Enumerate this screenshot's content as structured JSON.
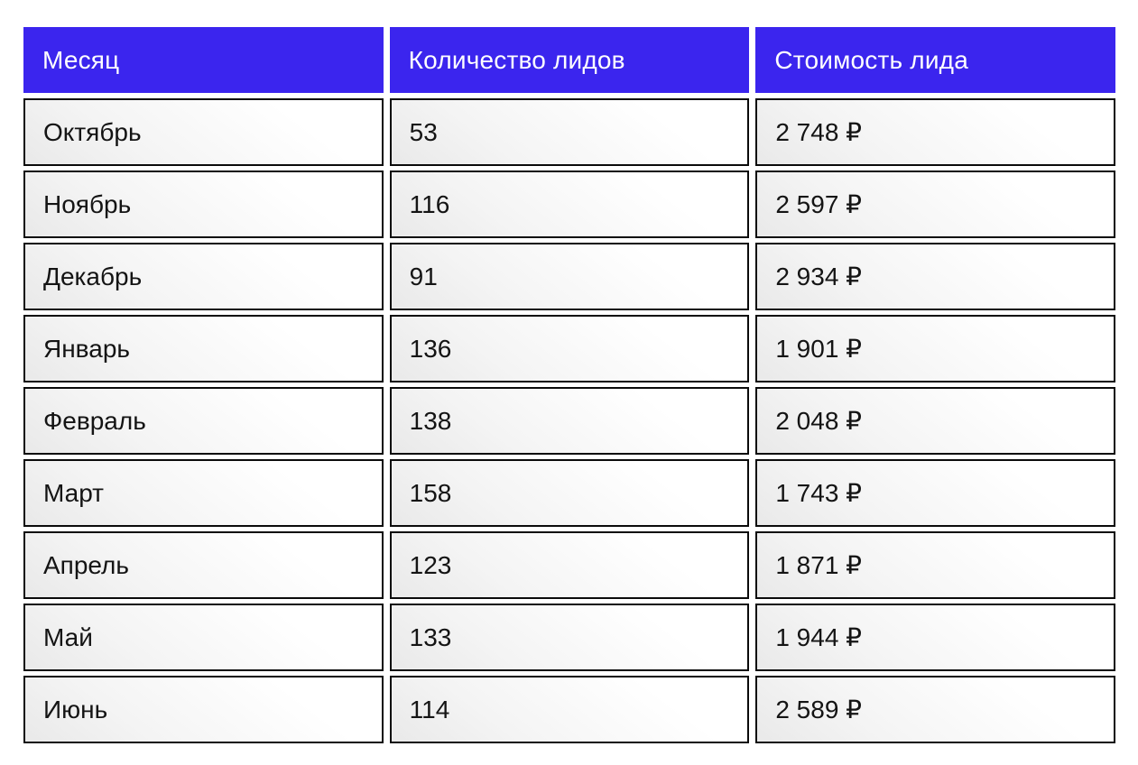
{
  "colors": {
    "header_bg": "#3b25ee",
    "header_text": "#ffffff",
    "cell_border": "#0b0b0b",
    "cell_text": "#141414",
    "page_bg": "#ffffff"
  },
  "table": {
    "columns": [
      {
        "label": "Месяц"
      },
      {
        "label": "Количество лидов"
      },
      {
        "label": "Стоимость лида"
      }
    ],
    "rows": [
      {
        "month": "Октябрь",
        "leads": "53",
        "cost": "2 748 ₽"
      },
      {
        "month": "Ноябрь",
        "leads": "116",
        "cost": "2 597 ₽"
      },
      {
        "month": "Декабрь",
        "leads": "91",
        "cost": "2 934 ₽"
      },
      {
        "month": "Январь",
        "leads": "136",
        "cost": "1 901 ₽"
      },
      {
        "month": "Февраль",
        "leads": "138",
        "cost": "2 048 ₽"
      },
      {
        "month": "Март",
        "leads": "158",
        "cost": "1 743 ₽"
      },
      {
        "month": "Апрель",
        "leads": "123",
        "cost": "1 871 ₽"
      },
      {
        "month": "Май",
        "leads": "133",
        "cost": "1 944 ₽"
      },
      {
        "month": "Июнь",
        "leads": "114",
        "cost": "2 589 ₽"
      }
    ]
  },
  "chart_data": {
    "type": "table",
    "columns": [
      "Месяц",
      "Количество лидов",
      "Стоимость лида"
    ],
    "rows": [
      [
        "Октябрь",
        53,
        "2 748 ₽"
      ],
      [
        "Ноябрь",
        116,
        "2 597 ₽"
      ],
      [
        "Декабрь",
        91,
        "2 934 ₽"
      ],
      [
        "Январь",
        136,
        "1 901 ₽"
      ],
      [
        "Февраль",
        138,
        "2 048 ₽"
      ],
      [
        "Март",
        158,
        "1 743 ₽"
      ],
      [
        "Апрель",
        123,
        "1 871 ₽"
      ],
      [
        "Май",
        133,
        "1 944 ₽"
      ],
      [
        "Июнь",
        114,
        "2 589 ₽"
      ]
    ],
    "months": [
      "Октябрь",
      "Ноябрь",
      "Декабрь",
      "Январь",
      "Февраль",
      "Март",
      "Апрель",
      "Май",
      "Июнь"
    ],
    "leads_count": [
      53,
      116,
      91,
      136,
      138,
      158,
      123,
      133,
      114
    ],
    "cost_per_lead_rub": [
      2748,
      2597,
      2934,
      1901,
      2048,
      1743,
      1871,
      1944,
      2589
    ],
    "currency": "₽"
  }
}
